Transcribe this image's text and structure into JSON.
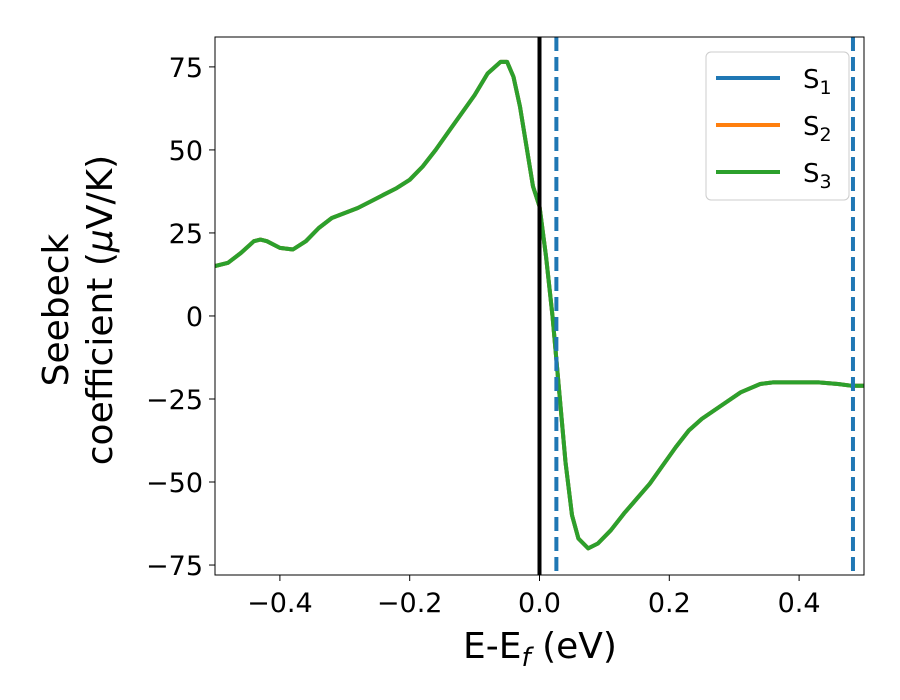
{
  "chart_data": {
    "type": "line",
    "xlabel": {
      "base": "E-E",
      "sub": "f",
      "unit": " (eV)"
    },
    "ylabel": {
      "line1": "Seebeck",
      "line2": "coefficient  (",
      "mu": "μ",
      "unit": "V/K)"
    },
    "xlim": [
      -0.5,
      0.5
    ],
    "ylim": [
      -78,
      84
    ],
    "x_ticks": [
      -0.4,
      -0.2,
      0.0,
      0.2,
      0.4
    ],
    "x_tick_labels": [
      "−0.4",
      "−0.2",
      "0.0",
      "0.2",
      "0.4"
    ],
    "y_ticks": [
      75,
      50,
      25,
      0,
      -25,
      -50,
      -75
    ],
    "y_tick_labels": [
      "75",
      "50",
      "25",
      "0",
      "−25",
      "−50",
      "−75"
    ],
    "grid": false,
    "legend": {
      "position": "top-right",
      "entries": [
        {
          "base": "S",
          "sub": "1",
          "color": "#1f77b4"
        },
        {
          "base": "S",
          "sub": "2",
          "color": "#ff7f0e"
        },
        {
          "base": "S",
          "sub": "3",
          "color": "#2ca02c"
        }
      ]
    },
    "vlines": [
      {
        "x": 0.0,
        "color": "#000000",
        "style": "solid"
      },
      {
        "x": 0.026,
        "color": "#1f77b4",
        "style": "dashed"
      },
      {
        "x": 0.483,
        "color": "#1f77b4",
        "style": "dashed"
      }
    ],
    "series_x": [
      -0.5,
      -0.48,
      -0.46,
      -0.44,
      -0.43,
      -0.42,
      -0.4,
      -0.38,
      -0.36,
      -0.34,
      -0.32,
      -0.3,
      -0.28,
      -0.26,
      -0.24,
      -0.22,
      -0.2,
      -0.18,
      -0.16,
      -0.14,
      -0.12,
      -0.1,
      -0.08,
      -0.06,
      -0.05,
      -0.04,
      -0.03,
      -0.02,
      -0.01,
      0.0,
      0.01,
      0.02,
      0.03,
      0.04,
      0.05,
      0.06,
      0.075,
      0.09,
      0.11,
      0.13,
      0.15,
      0.17,
      0.19,
      0.21,
      0.23,
      0.25,
      0.28,
      0.31,
      0.34,
      0.36,
      0.38,
      0.4,
      0.43,
      0.46,
      0.48,
      0.5
    ],
    "series": [
      {
        "name": "S1",
        "color": "#1f77b4",
        "values": [
          15,
          16,
          19,
          22.5,
          23,
          22.5,
          20.5,
          20,
          22.5,
          26.5,
          29.5,
          31,
          32.5,
          34.5,
          36.5,
          38.5,
          41,
          45,
          50,
          55.5,
          61,
          66.5,
          73,
          76.5,
          76.5,
          72,
          63,
          51,
          39,
          33,
          18,
          0,
          -22,
          -44,
          -60,
          -67,
          -70,
          -68.5,
          -64.5,
          -59.5,
          -55,
          -50.5,
          -45,
          -39.5,
          -34.5,
          -31,
          -27,
          -23,
          -20.5,
          -20,
          -20,
          -20,
          -20,
          -20.5,
          -21,
          -21
        ]
      },
      {
        "name": "S2",
        "color": "#ff7f0e",
        "values": [
          15,
          16,
          19,
          22.5,
          23,
          22.5,
          20.5,
          20,
          22.5,
          26.5,
          29.5,
          31,
          32.5,
          34.5,
          36.5,
          38.5,
          41,
          45,
          50,
          55.5,
          61,
          66.5,
          73,
          76.5,
          76.5,
          72,
          63,
          51,
          39,
          33,
          18,
          0,
          -22,
          -44,
          -60,
          -67,
          -70,
          -68.5,
          -64.5,
          -59.5,
          -55,
          -50.5,
          -45,
          -39.5,
          -34.5,
          -31,
          -27,
          -23,
          -20.5,
          -20,
          -20,
          -20,
          -20,
          -20.5,
          -21,
          -21
        ]
      },
      {
        "name": "S3",
        "color": "#2ca02c",
        "values": [
          15,
          16,
          19,
          22.5,
          23,
          22.5,
          20.5,
          20,
          22.5,
          26.5,
          29.5,
          31,
          32.5,
          34.5,
          36.5,
          38.5,
          41,
          45,
          50,
          55.5,
          61,
          66.5,
          73,
          76.5,
          76.5,
          72,
          63,
          51,
          39,
          33,
          18,
          0,
          -22,
          -44,
          -60,
          -67,
          -70,
          -68.5,
          -64.5,
          -59.5,
          -55,
          -50.5,
          -45,
          -39.5,
          -34.5,
          -31,
          -27,
          -23,
          -20.5,
          -20,
          -20,
          -20,
          -20,
          -20.5,
          -21,
          -21
        ]
      }
    ]
  }
}
